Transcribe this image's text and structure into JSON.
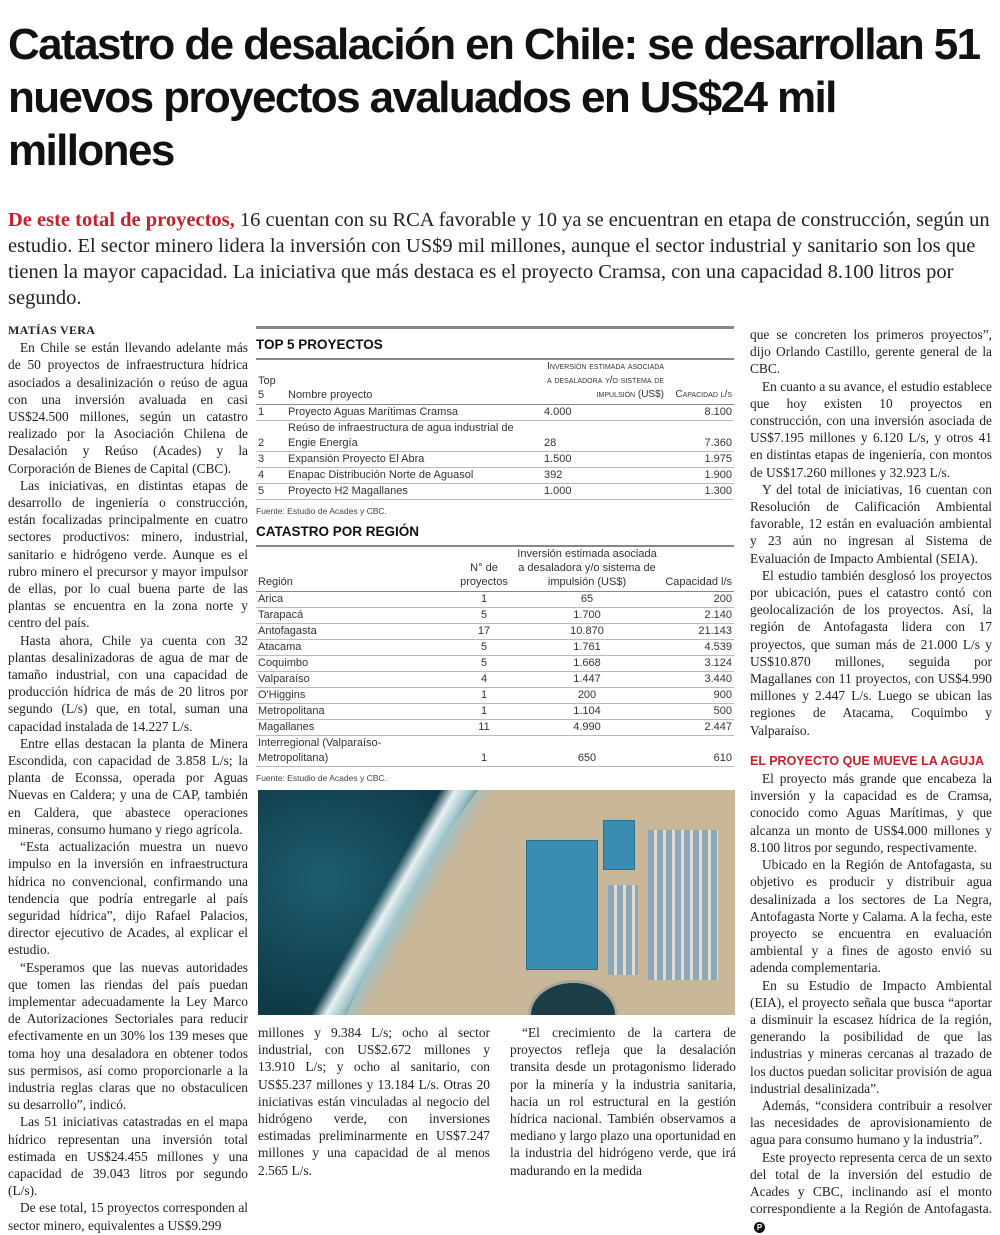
{
  "title": "Catastro de desalación en Chile: se desarrollan 51 nuevos proyectos avaluados en US$24 mil millones",
  "lead": {
    "highlight": "De este total de proyectos,",
    "text": " 16 cuentan con su RCA favorable y 10 ya se encuentran en etapa de construcción, según un estudio. El sector minero lidera la inversión con US$9 mil millones, aunque el sector industrial y sanitario son los que tienen la mayor capacidad. La iniciativa que más destaca es el proyecto Cramsa, con una capacidad 8.100 litros por segundo."
  },
  "byline": "MATÍAS VERA",
  "left_paragraphs": [
    "En Chile se están llevando adelante más de 50 proyectos de infraestructura hídrica asociados a desalinización o reúso de agua con una inversión avaluada en casi US$24.500 millones, según un catastro realizado por la Asociación Chilena de Desalación y Reúso (Acades) y la Corporación de Bienes de Capital (CBC).",
    "Las iniciativas, en distintas etapas de desarrollo de ingeniería o construcción, están focalizadas principalmente en cuatro sectores productivos: minero, industrial, sanitario e hidrógeno verde. Aunque es el rubro minero el precursor y mayor impulsor de ellas, por lo cual buena parte de las plantas se encuentra en la zona norte y centro del país.",
    "Hasta ahora, Chile ya cuenta con 32 plantas desalinizadoras de agua de mar de tamaño industrial, con una capacidad de producción hídrica de más de 20 litros por segundo (L/s) que, en total, suman una capacidad instalada de 14.227 L/s.",
    "Entre ellas destacan la planta de Minera Escondida, con capacidad de 3.858 L/s; la planta de Econssa, operada por Aguas Nuevas en Caldera; y una de CAP, también en Caldera, que abastece operaciones mineras, consumo humano y riego agrícola.",
    "“Esta actualización muestra un nuevo impulso en la inversión en infraestructura hídrica no convencional, confirmando una tendencia que podría entregarle al país seguridad hídrica”, dijo Rafael Palacios, director ejecutivo de Acades, al explicar el estudio.",
    "“Esperamos que las nuevas autoridades que tomen las riendas del país puedan implementar adecuadamente la Ley Marco de Autorizaciones Sectoriales para reducir efectivamente en un 30% los 139 meses que toma hoy una desaladora en obtener todos sus permisos, así como proporcionarle a la industria reglas claras que no obstaculicen su desarrollo”, indicó.",
    "Las 51 iniciativas catastradas en el mapa hídrico representan una inversión total estimada en US$24.455 millones y una capacidad de 39.043 litros por segundo (L/s).",
    "De ese total, 15 proyectos corresponden al sector minero, equivalentes a US$9.299"
  ],
  "bottom_col1": "millones y 9.384 L/s; ocho al sector industrial, con US$2.672 millones y 13.910 L/s; y ocho al sanitario, con US$5.237 millones y 13.184 L/s. Otras 20 iniciativas están vinculadas al negocio del hidrógeno verde, con inversiones estimadas preliminarmente en US$7.247 millones y una capacidad de al menos 2.565 L/s.",
  "bottom_col2": "“El crecimiento de la cartera de proyectos refleja que la desalación transita desde un protagonismo liderado por la minería y la industria sanitaria, hacia un rol estructural en la gestión hídrica nacional. También observamos a mediano y largo plazo una oportunidad en la industria del hidrógeno verde, que irá madurando en la medida",
  "right_paragraphs": [
    "que se concreten los primeros proyectos”, dijo Orlando Castillo, gerente general de la CBC.",
    "En cuanto a su avance, el estudio establece que hoy existen 10 proyectos en construcción, con una inversión asociada de US$7.195 millones y 6.120 L/s, y otros 41 en distintas etapas de ingeniería, con montos de US$17.260 millones y 32.923 L/s.",
    "Y del total de iniciativas, 16 cuentan con Resolución de Calificación Ambiental favorable, 12 están en evaluación ambiental y 23 aún no ingresan al Sistema de Evaluación de Impacto Ambiental (SEIA).",
    "El estudio también desglosó los proyectos por ubicación, pues el catastro contó con geolocalización de los proyectos. Así, la región de Antofagasta lidera con 17 proyectos, que suman más de 21.000 L/s y US$10.870 millones, seguida por Magallanes con 11 proyectos, con US$4.990 millones y 2.447 L/s. Luego se ubican las regiones de Atacama, Coquimbo y Valparaíso."
  ],
  "subhead": "EL PROYECTO QUE MUEVE LA AGUJA",
  "right_paragraphs_2": [
    "El proyecto más grande que encabeza la inversión y la capacidad es de Cramsa, conocido como Aguas Marítimas, y que alcanza un monto de US$4.000 millones y 8.100 litros por segundo, respectivamente.",
    "Ubicado en la Región de Antofagasta, su objetivo es producir y distribuir agua desalinizada a los sectores de La Negra, Antofagasta Norte y Calama. A la fecha, este proyecto se encuentra en evaluación ambiental y a fines de agosto envió su adenda complementaria.",
    "En su Estudio de Impacto Ambiental (EIA), el proyecto señala que busca “aportar a disminuir la escasez hídrica de la región, generando la posibilidad de que las industrias y mineras cercanas al trazado de los ductos puedan solicitar provisión de agua industrial desalinizada”.",
    "Además, “considera contribuir a resolver las necesidades de aprovisionamiento de agua para consumo humano y la industria”.",
    "Este proyecto representa cerca de un sexto del total de la inversión del estudio de Acades y CBC, inclinando así el monto correspondiente a la Región de Antofagasta."
  ],
  "end_mark": "P",
  "top5": {
    "title": "TOP 5 PROYECTOS",
    "headers": [
      "Top 5",
      "Nombre proyecto",
      "Inversión estimada asociada a desaladora y/o sistema de impulsión (US$)",
      "Capacidad l/s"
    ],
    "rows": [
      [
        "1",
        "Proyecto Aguas Marítimas Cramsa",
        "4.000",
        "8.100"
      ],
      [
        "2",
        "Reúso de infraestructura de agua industrial de Engie Energía",
        "28",
        "7.360"
      ],
      [
        "3",
        "Expansión Proyecto El Abra",
        "1.500",
        "1.975"
      ],
      [
        "4",
        "Enapac Distribución Norte de Aguasol",
        "392",
        "1.900"
      ],
      [
        "5",
        "Proyecto H2 Magallanes",
        "1.000",
        "1.300"
      ]
    ],
    "source": "Fuente: Estudio de Acades y CBC."
  },
  "region": {
    "title": "CATASTRO POR REGIÓN",
    "headers": [
      "Región",
      "N° de proyectos",
      "Inversión estimada asociada a desaladora y/o sistema de impulsión (US$)",
      "Capacidad l/s"
    ],
    "rows": [
      [
        "Arica",
        "1",
        "65",
        "200"
      ],
      [
        "Tarapacá",
        "5",
        "1.700",
        "2.140"
      ],
      [
        "Antofagasta",
        "17",
        "10.870",
        "21.143"
      ],
      [
        "Atacama",
        "5",
        "1.761",
        "4.539"
      ],
      [
        "Coquimbo",
        "5",
        "1.668",
        "3.124"
      ],
      [
        "Valparaíso",
        "4",
        "1.447",
        "3.440"
      ],
      [
        "O'Higgins",
        "1",
        "200",
        "900"
      ],
      [
        "Metropolitana",
        "1",
        "1.104",
        "500"
      ],
      [
        "Magallanes",
        "11",
        "4.990",
        "2.447"
      ],
      [
        "Interregional (Valparaíso- Metropolitana)",
        "1",
        "650",
        "610"
      ]
    ],
    "source": "Fuente: Estudio de Acades y CBC."
  }
}
